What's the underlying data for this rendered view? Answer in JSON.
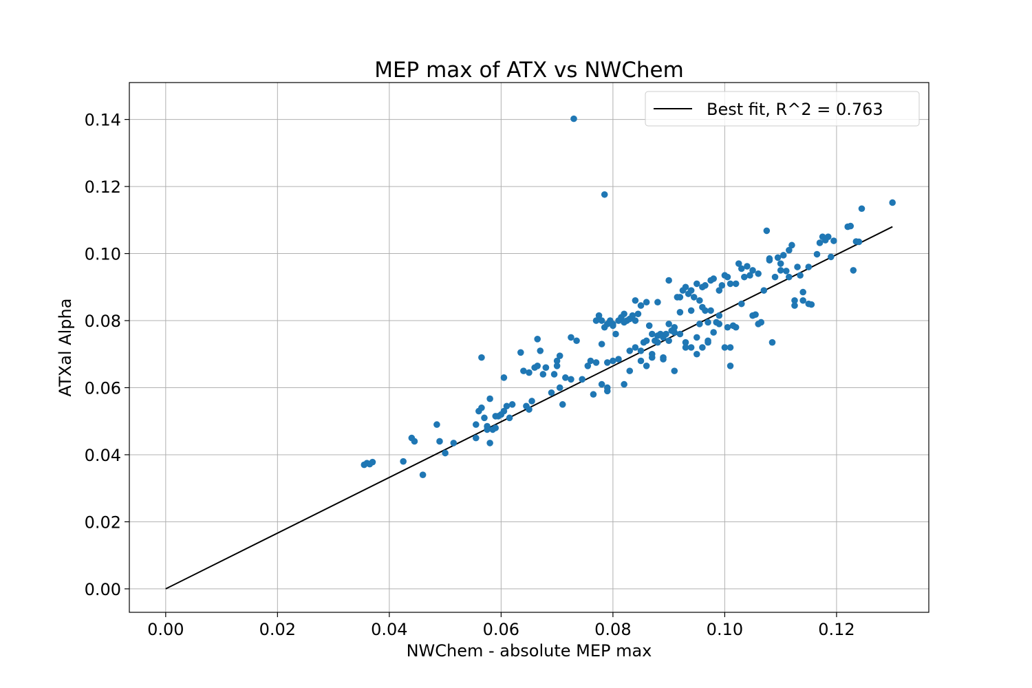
{
  "chart_data": {
    "type": "scatter",
    "title": "MEP max of ATX vs NWChem",
    "xlabel": "NWChem - absolute MEP max",
    "ylabel": "ATXal Alpha",
    "xlim": [
      -0.0065,
      0.1365
    ],
    "ylim": [
      -0.007,
      0.151
    ],
    "xticks": [
      0.0,
      0.02,
      0.04,
      0.06,
      0.08,
      0.1,
      0.12
    ],
    "xtick_labels": [
      "0.00",
      "0.02",
      "0.04",
      "0.06",
      "0.08",
      "0.10",
      "0.12"
    ],
    "yticks": [
      0.0,
      0.02,
      0.04,
      0.06,
      0.08,
      0.1,
      0.12,
      0.14
    ],
    "ytick_labels": [
      "0.00",
      "0.02",
      "0.04",
      "0.06",
      "0.08",
      "0.10",
      "0.12",
      "0.14"
    ],
    "grid": true,
    "legend_position": "upper right",
    "point_color": "#1f77b4",
    "line_color": "#000000",
    "fit_line": {
      "name": "Best fit, R^2 = 0.763",
      "x": [
        0.0,
        0.13
      ],
      "y": [
        0.0,
        0.108
      ]
    },
    "scatter": {
      "x": [
        0.073,
        0.0785,
        0.13,
        0.1245,
        0.122,
        0.1225,
        0.1235,
        0.124,
        0.123,
        0.1195,
        0.119,
        0.1185,
        0.1175,
        0.118,
        0.117,
        0.1165,
        0.115,
        0.1155,
        0.114,
        0.1135,
        0.113,
        0.1125,
        0.112,
        0.1115,
        0.111,
        0.1105,
        0.11,
        0.1095,
        0.109,
        0.1085,
        0.108,
        0.1075,
        0.107,
        0.1065,
        0.106,
        0.1055,
        0.105,
        0.1045,
        0.104,
        0.1035,
        0.103,
        0.1025,
        0.102,
        0.1015,
        0.101,
        0.1005,
        0.1,
        0.0995,
        0.099,
        0.0985,
        0.098,
        0.0975,
        0.097,
        0.0965,
        0.096,
        0.0955,
        0.095,
        0.0945,
        0.094,
        0.0935,
        0.093,
        0.0925,
        0.092,
        0.0915,
        0.091,
        0.0905,
        0.09,
        0.0895,
        0.089,
        0.0885,
        0.088,
        0.0875,
        0.087,
        0.0865,
        0.086,
        0.0855,
        0.085,
        0.0845,
        0.084,
        0.0835,
        0.083,
        0.0825,
        0.082,
        0.0815,
        0.081,
        0.0805,
        0.08,
        0.0795,
        0.079,
        0.0785,
        0.078,
        0.0775,
        0.077,
        0.0765,
        0.0755,
        0.0745,
        0.0735,
        0.0725,
        0.0715,
        0.071,
        0.0705,
        0.07,
        0.0695,
        0.069,
        0.068,
        0.0675,
        0.067,
        0.0665,
        0.066,
        0.0655,
        0.065,
        0.0645,
        0.064,
        0.0635,
        0.0615,
        0.061,
        0.0605,
        0.06,
        0.0595,
        0.059,
        0.0585,
        0.058,
        0.0575,
        0.057,
        0.0565,
        0.056,
        0.0555,
        0.0515,
        0.05,
        0.049,
        0.0485,
        0.046,
        0.0445,
        0.044,
        0.0425,
        0.037,
        0.0365,
        0.036,
        0.0355,
        0.108,
        0.1115,
        0.114,
        0.115,
        0.1125,
        0.11,
        0.106,
        0.105,
        0.103,
        0.102,
        0.101,
        0.1,
        0.099,
        0.098,
        0.097,
        0.096,
        0.095,
        0.094,
        0.093,
        0.092,
        0.091,
        0.09,
        0.089,
        0.088,
        0.087,
        0.086,
        0.085,
        0.084,
        0.083,
        0.082,
        0.081,
        0.08,
        0.079,
        0.078,
        0.077,
        0.076,
        0.097,
        0.095,
        0.093,
        0.091,
        0.089,
        0.087,
        0.085,
        0.083,
        0.099,
        0.096,
        0.094,
        0.092,
        0.09,
        0.088,
        0.086,
        0.084,
        0.082,
        0.08,
        0.078,
        0.0565,
        0.0605,
        0.065,
        0.0665,
        0.068,
        0.07,
        0.062,
        0.059,
        0.0575,
        0.0555,
        0.058,
        0.0725,
        0.0705,
        0.079,
        0.079,
        0.1005,
        0.101,
        0.0955,
        0.0965,
        0.0975
      ],
      "y": [
        0.1402,
        0.1176,
        0.1152,
        0.1134,
        0.108,
        0.1082,
        0.1036,
        0.1035,
        0.095,
        0.1038,
        0.099,
        0.105,
        0.105,
        0.104,
        0.1032,
        0.0998,
        0.096,
        0.0848,
        0.0885,
        0.0935,
        0.096,
        0.0845,
        0.1025,
        0.101,
        0.0948,
        0.0995,
        0.097,
        0.0988,
        0.093,
        0.0735,
        0.0985,
        0.1068,
        0.089,
        0.0795,
        0.094,
        0.0818,
        0.095,
        0.0935,
        0.0962,
        0.093,
        0.0955,
        0.097,
        0.091,
        0.0785,
        0.091,
        0.093,
        0.0935,
        0.0905,
        0.089,
        0.0795,
        0.0925,
        0.092,
        0.0795,
        0.0905,
        0.09,
        0.086,
        0.091,
        0.087,
        0.089,
        0.088,
        0.09,
        0.089,
        0.087,
        0.087,
        0.078,
        0.077,
        0.079,
        0.076,
        0.075,
        0.076,
        0.0755,
        0.074,
        0.076,
        0.0785,
        0.074,
        0.0735,
        0.0845,
        0.082,
        0.08,
        0.0815,
        0.0805,
        0.08,
        0.082,
        0.081,
        0.08,
        0.076,
        0.079,
        0.08,
        0.079,
        0.078,
        0.08,
        0.0815,
        0.08,
        0.058,
        0.0665,
        0.0625,
        0.074,
        0.075,
        0.063,
        0.055,
        0.06,
        0.068,
        0.064,
        0.0585,
        0.066,
        0.064,
        0.071,
        0.0745,
        0.066,
        0.056,
        0.0535,
        0.0545,
        0.065,
        0.0705,
        0.051,
        0.0545,
        0.053,
        0.052,
        0.0515,
        0.048,
        0.0475,
        0.0435,
        0.0485,
        0.051,
        0.054,
        0.053,
        0.045,
        0.0435,
        0.0405,
        0.044,
        0.049,
        0.034,
        0.044,
        0.045,
        0.038,
        0.0378,
        0.0372,
        0.0375,
        0.037,
        0.098,
        0.093,
        0.086,
        0.085,
        0.086,
        0.095,
        0.079,
        0.0815,
        0.085,
        0.078,
        0.0665,
        0.072,
        0.0815,
        0.0765,
        0.0735,
        0.072,
        0.07,
        0.072,
        0.0735,
        0.076,
        0.0765,
        0.074,
        0.0685,
        0.0735,
        0.07,
        0.0665,
        0.068,
        0.072,
        0.071,
        0.061,
        0.0685,
        0.068,
        0.0675,
        0.061,
        0.0675,
        0.068,
        0.074,
        0.075,
        0.072,
        0.065,
        0.069,
        0.069,
        0.071,
        0.065,
        0.079,
        0.084,
        0.083,
        0.0825,
        0.092,
        0.0855,
        0.0855,
        0.086,
        0.0795,
        0.0785,
        0.073,
        0.069,
        0.063,
        0.0645,
        0.0665,
        0.066,
        0.0665,
        0.055,
        0.0515,
        0.0475,
        0.049,
        0.0567,
        0.0625,
        0.0695,
        0.059,
        0.06,
        0.078,
        0.072,
        0.079,
        0.083,
        0.083
      ]
    }
  }
}
